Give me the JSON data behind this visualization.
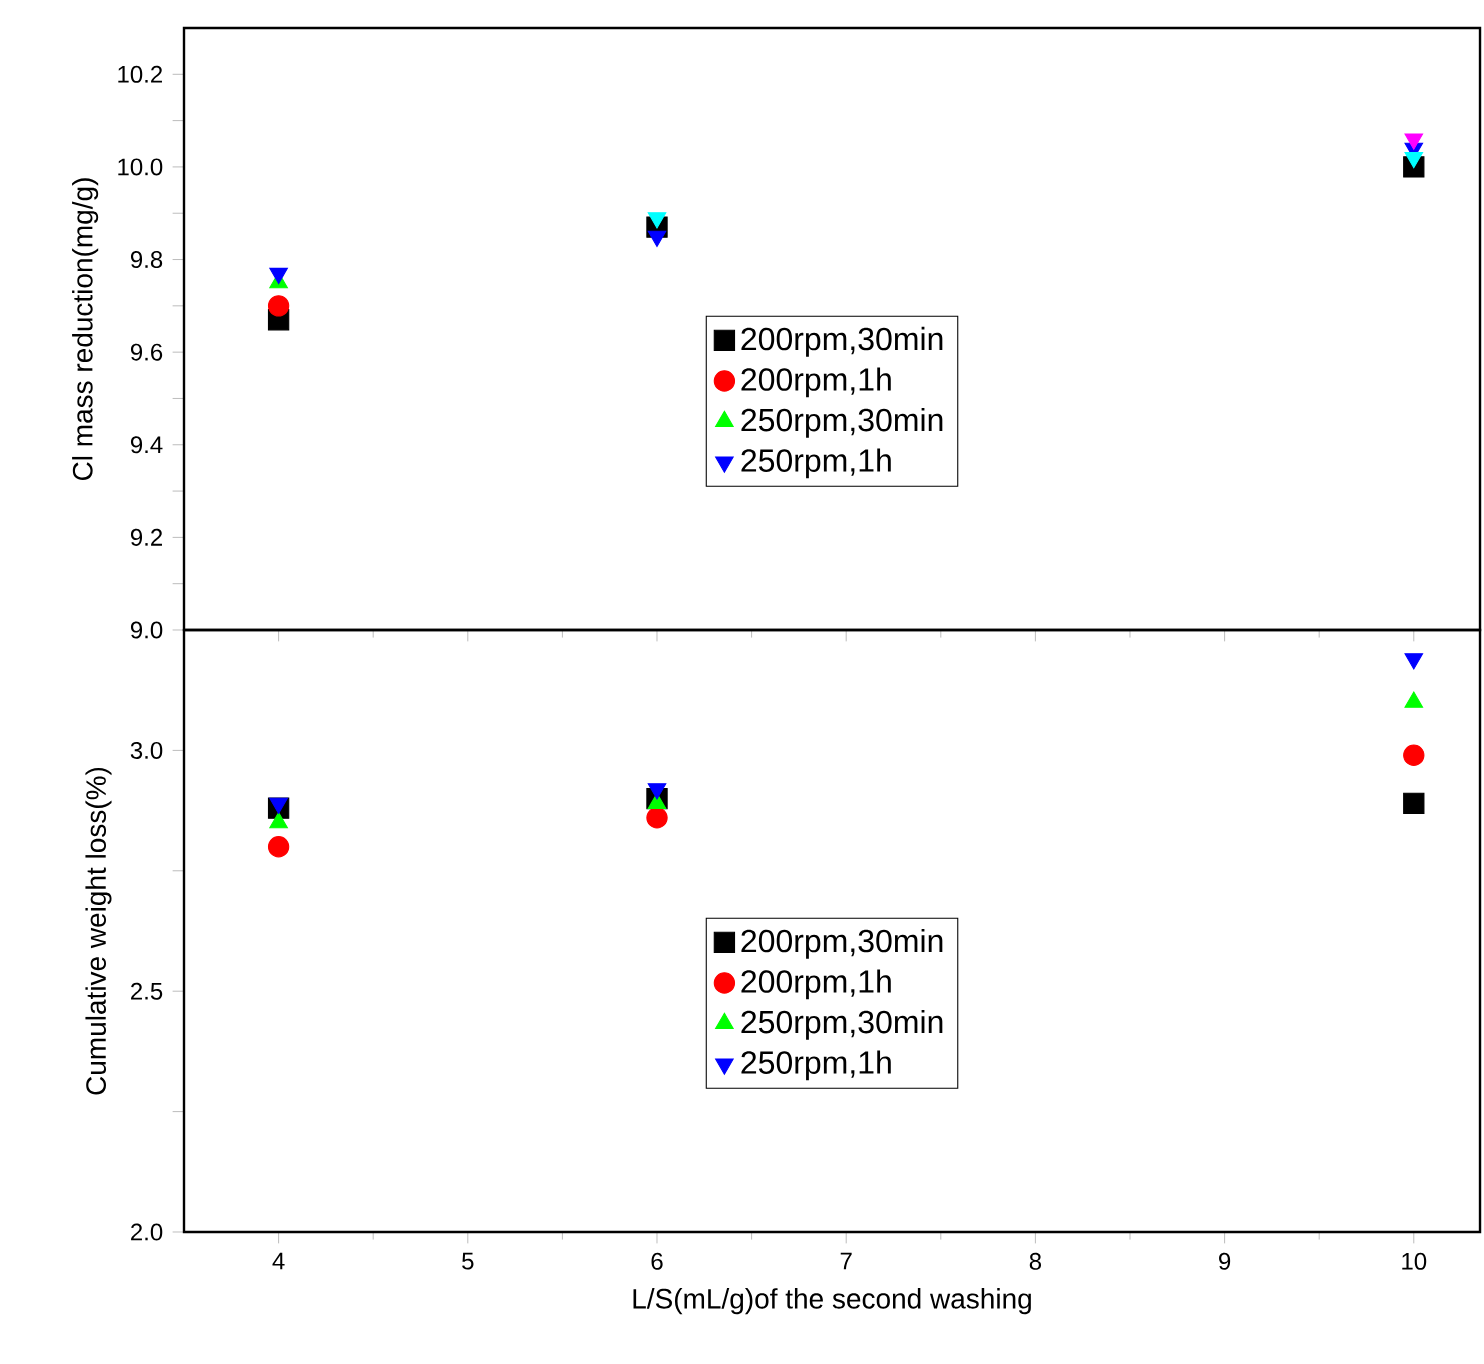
{
  "chart_data": [
    {
      "type": "scatter",
      "ylabel": "Cl mass reduction(mg/g)",
      "x": [
        4,
        6,
        10
      ],
      "xlim": [
        3.5,
        10.35
      ],
      "ylim": [
        9.0,
        10.3
      ],
      "yticks": [
        {
          "value": 9,
          "label": "9.0"
        },
        {
          "value": 9.1,
          "label": null
        },
        {
          "value": 9.2,
          "label": "9.2"
        },
        {
          "value": 9.3,
          "label": null
        },
        {
          "value": 9.4,
          "label": "9.4"
        },
        {
          "value": 9.5,
          "label": null
        },
        {
          "value": 9.6,
          "label": "9.6"
        },
        {
          "value": 9.7,
          "label": null
        },
        {
          "value": 9.8,
          "label": "9.8"
        },
        {
          "value": 9.9,
          "label": null
        },
        {
          "value": 10,
          "label": "10.0"
        },
        {
          "value": 10.1,
          "label": null
        },
        {
          "value": 10.2,
          "label": "10.2"
        }
      ],
      "xticks": [
        4,
        5,
        6,
        7,
        8,
        9,
        10
      ],
      "tick_labels": "y",
      "legend": "center",
      "series": [
        {
          "name": "200rpm,30min",
          "color": "#000000",
          "marker": "square",
          "values": [
            9.67,
            9.87,
            10.0
          ]
        },
        {
          "name": "200rpm,1h",
          "color": "#ff0000",
          "marker": "circle",
          "values": [
            9.7,
            null,
            null
          ]
        },
        {
          "name": "250rpm,30min",
          "color": "#00ff00",
          "marker": "triangle",
          "values": [
            9.75,
            null,
            null
          ]
        },
        {
          "name": "250rpm,1h",
          "color": "#0000ff",
          "marker": "triangle-down",
          "values": [
            9.77,
            9.85,
            10.04
          ]
        },
        {
          "color": "#00ffff",
          "marker": "triangle-down",
          "values": [
            null,
            9.89,
            10.02
          ]
        },
        {
          "color": "#ff00ff",
          "marker": "triangle-down",
          "values": [
            null,
            null,
            10.06
          ]
        }
      ]
    },
    {
      "type": "scatter",
      "ylabel": "Cumulative weight loss(%)",
      "xlabel": "L/S(mL/g)of  the second washing",
      "x": [
        4,
        6,
        10
      ],
      "xlim": [
        3.5,
        10.35
      ],
      "ylim": [
        2.0,
        3.25
      ],
      "yticks": [
        {
          "value": 2,
          "label": "2.0"
        },
        {
          "value": 2.25,
          "label": null
        },
        {
          "value": 2.5,
          "label": "2.5"
        },
        {
          "value": 2.75,
          "label": null
        },
        {
          "value": 3,
          "label": "3.0"
        }
      ],
      "xticks": [
        4,
        5,
        6,
        7,
        8,
        9,
        10
      ],
      "legend": "center",
      "series": [
        {
          "name": "200rpm,30min",
          "color": "#000000",
          "marker": "square",
          "values": [
            2.88,
            2.9,
            2.89
          ]
        },
        {
          "name": "200rpm,1h",
          "color": "#ff0000",
          "marker": "circle",
          "values": [
            2.8,
            2.86,
            2.99
          ]
        },
        {
          "name": "250rpm,30min",
          "color": "#00ff00",
          "marker": "triangle",
          "values": [
            2.85,
            2.89,
            3.1
          ]
        },
        {
          "name": "250rpm,1h",
          "color": "#0000ff",
          "marker": "triangle-down",
          "values": [
            2.89,
            2.92,
            3.19
          ]
        }
      ]
    }
  ]
}
